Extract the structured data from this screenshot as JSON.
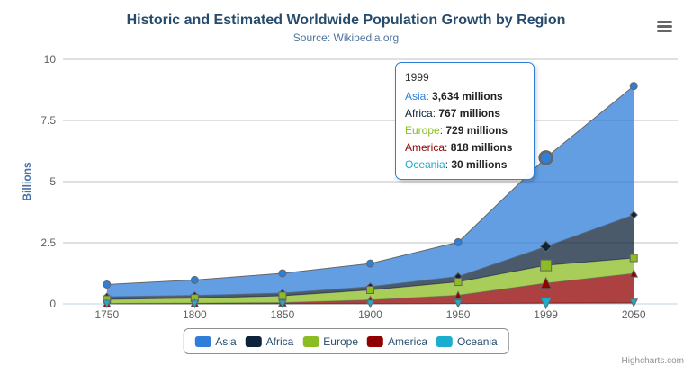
{
  "header": {
    "title": "Historic and Estimated Worldwide Population Growth by Region",
    "subtitle": "Source: Wikipedia.org"
  },
  "colors": {
    "title": "#274b6d",
    "subtitle": "#4d759e",
    "axis_label": "#606060",
    "yaxis_title": "#4572A7",
    "gridline": "#C0C0C0",
    "xaxis_line": "#C0D0E0",
    "series_outline": "#666666",
    "legend_border": "#909090",
    "legend_text": "#274b6d",
    "tooltip_border": "#2f7ed8",
    "credits_text": "#909090",
    "menu_icon": "#666666"
  },
  "chart_data": {
    "type": "area",
    "stacking": "normal",
    "title": "Historic and Estimated Worldwide Population Growth by Region",
    "subtitle": "Source: Wikipedia.org",
    "categories": [
      "1750",
      "1800",
      "1850",
      "1900",
      "1950",
      "1999",
      "2050"
    ],
    "xlabel": "",
    "ylabel": "Billions",
    "ylim": [
      0,
      10
    ],
    "yticks": [
      "0",
      "2.5",
      "5",
      "7.5",
      "10"
    ],
    "value_unit": "millions",
    "grid": true,
    "legend_position": "bottom",
    "fill_opacity": 0.75,
    "stack_order_bottom_to_top": [
      "Oceania",
      "America",
      "Europe",
      "Africa",
      "Asia"
    ],
    "series": [
      {
        "name": "Asia",
        "color": "#2f7ed8",
        "marker": "circle",
        "values": [
          502,
          635,
          809,
          947,
          1402,
          3634,
          5268
        ]
      },
      {
        "name": "Africa",
        "color": "#0d233a",
        "marker": "diamond",
        "values": [
          106,
          107,
          111,
          133,
          221,
          767,
          1766
        ]
      },
      {
        "name": "Europe",
        "color": "#8bbc21",
        "marker": "square",
        "values": [
          163,
          203,
          276,
          408,
          547,
          729,
          628
        ]
      },
      {
        "name": "America",
        "color": "#910000",
        "marker": "triangle-up",
        "values": [
          18,
          31,
          54,
          156,
          339,
          818,
          1201
        ]
      },
      {
        "name": "Oceania",
        "color": "#1aadce",
        "marker": "triangle-down",
        "values": [
          2,
          2,
          2,
          6,
          13,
          30,
          46
        ]
      }
    ]
  },
  "tooltip": {
    "header": "1999",
    "hover_category": "1999",
    "value_suffix": " millions",
    "rows": [
      {
        "name": "Asia",
        "value": "3,634"
      },
      {
        "name": "Africa",
        "value": "767"
      },
      {
        "name": "Europe",
        "value": "729"
      },
      {
        "name": "America",
        "value": "818"
      },
      {
        "name": "Oceania",
        "value": "30"
      }
    ]
  },
  "legend": {
    "items": [
      "Asia",
      "Africa",
      "Europe",
      "America",
      "Oceania"
    ]
  },
  "credits": {
    "label": "Highcharts.com"
  }
}
